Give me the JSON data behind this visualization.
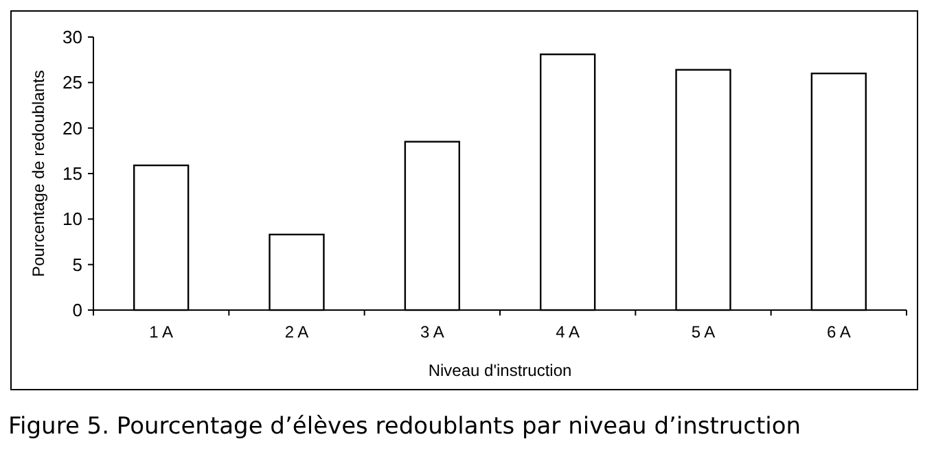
{
  "chart_data": {
    "type": "bar",
    "title": "Figure 5. Pourcentage d’élèves redoublants par niveau d’instruction",
    "xlabel": "Niveau d'instruction",
    "ylabel": "Pourcentage de redoublants",
    "categories": [
      "1 A",
      "2 A",
      "3 A",
      "4 A",
      "5 A",
      "6 A"
    ],
    "values": [
      15.9,
      8.3,
      18.5,
      28.1,
      26.4,
      26.0
    ],
    "color": "#ffffff",
    "ylim": [
      0,
      30
    ],
    "yticks": [
      0,
      5,
      10,
      15,
      20,
      25,
      30
    ],
    "grid": false
  }
}
